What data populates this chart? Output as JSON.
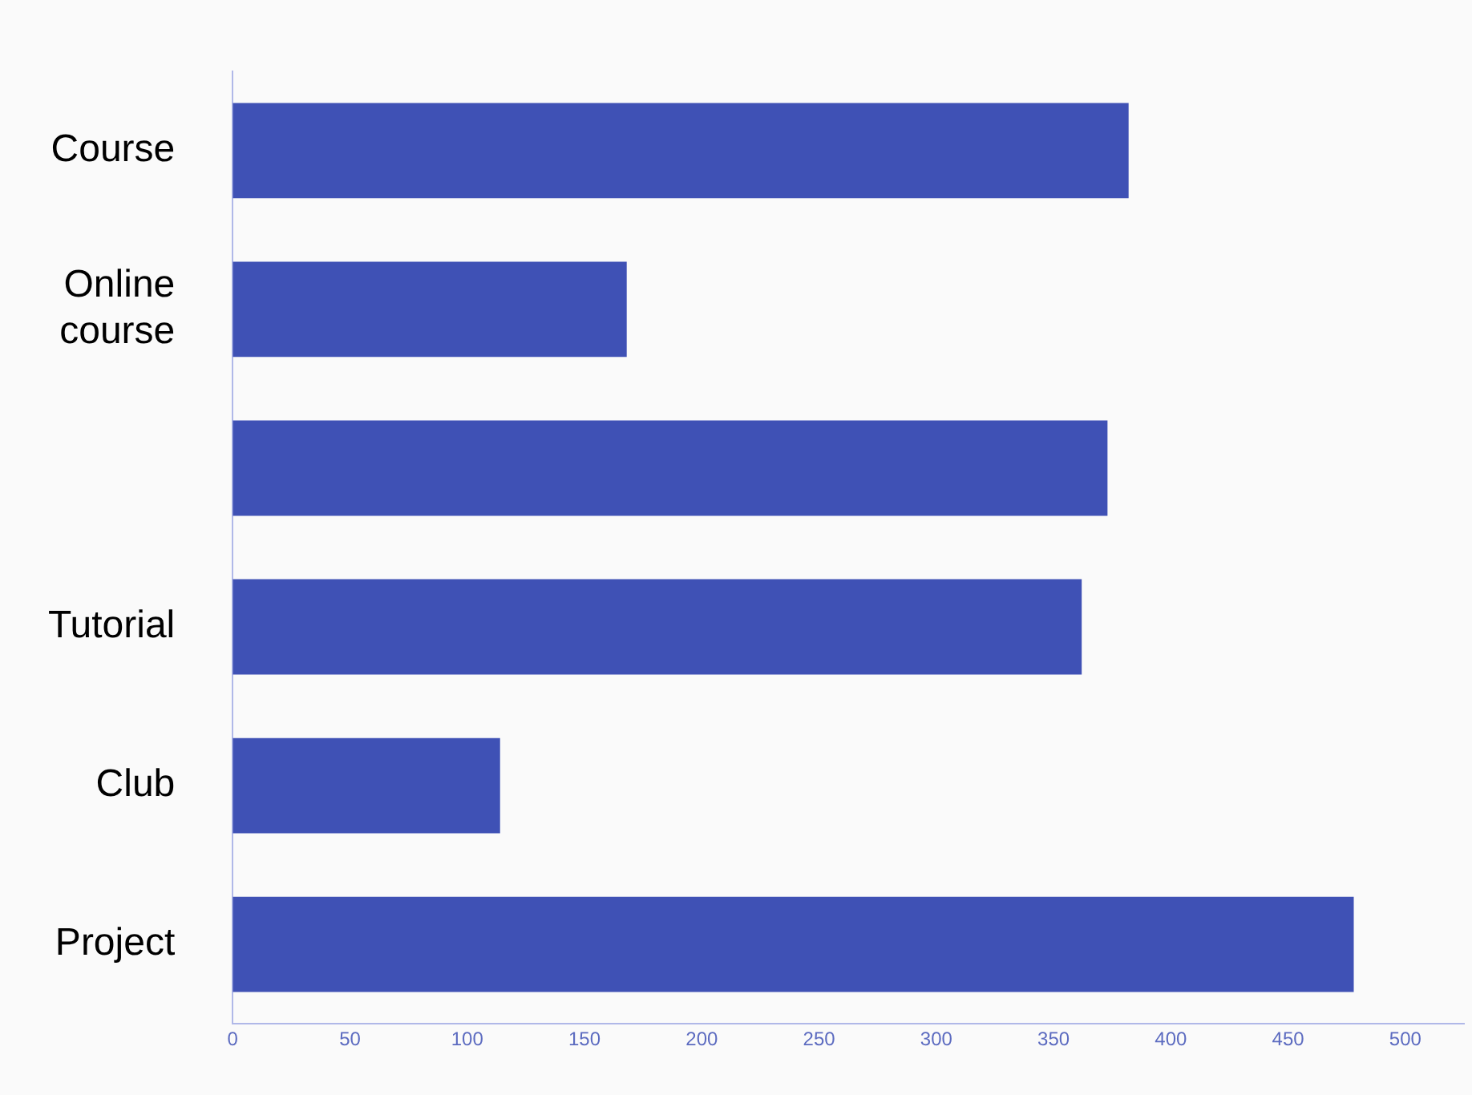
{
  "chart_data": {
    "type": "bar",
    "orientation": "horizontal",
    "categories": [
      "Course",
      "Online course",
      null,
      "Tutorial",
      "Club",
      "Project"
    ],
    "values": [
      382,
      168,
      373,
      362,
      114,
      478
    ],
    "color": "#3f51b5",
    "xlim": [
      0,
      525
    ],
    "xticks": [
      0,
      50,
      100,
      150,
      200,
      250,
      300,
      350,
      400,
      450,
      500
    ],
    "grid": false,
    "legend": false
  }
}
